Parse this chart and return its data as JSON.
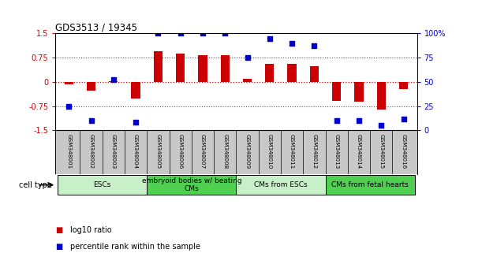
{
  "title": "GDS3513 / 19345",
  "samples": [
    "GSM348001",
    "GSM348002",
    "GSM348003",
    "GSM348004",
    "GSM348005",
    "GSM348006",
    "GSM348007",
    "GSM348008",
    "GSM348009",
    "GSM348010",
    "GSM348011",
    "GSM348012",
    "GSM348013",
    "GSM348014",
    "GSM348015",
    "GSM348016"
  ],
  "log10_ratio": [
    -0.08,
    -0.28,
    0.03,
    -0.52,
    0.95,
    0.88,
    0.82,
    0.82,
    0.1,
    0.55,
    0.55,
    0.48,
    -0.58,
    -0.62,
    -0.85,
    -0.22
  ],
  "percentile_rank": [
    25,
    10,
    52,
    8,
    100,
    100,
    100,
    100,
    75,
    95,
    90,
    87,
    10,
    10,
    5,
    12
  ],
  "ylim_left": [
    -1.5,
    1.5
  ],
  "ylim_right": [
    0,
    100
  ],
  "yticks_left": [
    -1.5,
    -0.75,
    0,
    0.75,
    1.5
  ],
  "ytick_labels_left": [
    "-1.5",
    "-0.75",
    "0",
    "0.75",
    "1.5"
  ],
  "ytick_labels_right": [
    "0",
    "25",
    "50",
    "75",
    "100%"
  ],
  "bar_color": "#cc0000",
  "dot_color": "#0000cc",
  "cell_type_groups": [
    {
      "label": "ESCs",
      "start": 0,
      "end": 4,
      "color": "#c8f0c8"
    },
    {
      "label": "embryoid bodies w/ beating\nCMs",
      "start": 4,
      "end": 8,
      "color": "#50d050"
    },
    {
      "label": "CMs from ESCs",
      "start": 8,
      "end": 12,
      "color": "#c8f0c8"
    },
    {
      "label": "CMs from fetal hearts",
      "start": 12,
      "end": 16,
      "color": "#50d050"
    }
  ],
  "legend_bar_label": "log10 ratio",
  "legend_dot_label": "percentile rank within the sample",
  "zero_line_color": "#cc0000",
  "dotted_line_color": "#555555",
  "background_color": "#ffffff",
  "sample_label_bg": "#c8c8c8",
  "bar_width": 0.4
}
